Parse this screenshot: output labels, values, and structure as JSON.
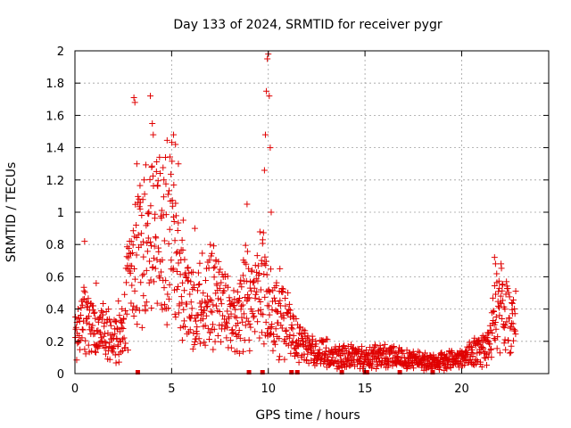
{
  "chart_data": {
    "type": "scatter",
    "title": "Day 133 of 2024, SRMTID for receiver pygr",
    "xlabel": "GPS time / hours",
    "ylabel": "SRMTID / TECUs",
    "xlim": [
      0,
      24.5
    ],
    "ylim": [
      0,
      2
    ],
    "xticks": [
      0,
      5,
      10,
      15,
      20
    ],
    "xtick_labels": [
      "0",
      "5",
      "10",
      "15",
      "20"
    ],
    "yticks": [
      0,
      0.2,
      0.4,
      0.6,
      0.8,
      1,
      1.2,
      1.4,
      1.6,
      1.8,
      2
    ],
    "ytick_labels": [
      "0",
      "0.2",
      "0.4",
      "0.6",
      "0.8",
      "1",
      "1.2",
      "1.4",
      "1.6",
      "1.8",
      "2"
    ],
    "grid": true,
    "marker": "+",
    "color": "#e00000",
    "series": [
      {
        "name": "SRMTID",
        "envelope_x": [
          0,
          0.3,
          0.5,
          1,
          1.5,
          2,
          2.5,
          2.8,
          3,
          3.3,
          3.5,
          4,
          4.5,
          5,
          5.2,
          5.5,
          6,
          6.5,
          7,
          7.5,
          8,
          8.5,
          8.8,
          9,
          9.3,
          9.5,
          9.7,
          9.8,
          10,
          10.3,
          10.5,
          11,
          11.5,
          12,
          13,
          14,
          15,
          16,
          17,
          18,
          18.5,
          19,
          20,
          20.5,
          21,
          21.5,
          21.7,
          22,
          22.5,
          22.8
        ],
        "envelope_y": [
          0.24,
          0.28,
          0.32,
          0.28,
          0.25,
          0.22,
          0.3,
          0.55,
          0.6,
          0.8,
          0.75,
          0.85,
          0.85,
          0.95,
          0.75,
          0.5,
          0.4,
          0.45,
          0.5,
          0.45,
          0.35,
          0.3,
          0.5,
          0.4,
          0.45,
          0.55,
          0.6,
          0.5,
          0.45,
          0.35,
          0.4,
          0.3,
          0.2,
          0.15,
          0.13,
          0.11,
          0.1,
          0.11,
          0.1,
          0.08,
          0.07,
          0.08,
          0.1,
          0.12,
          0.15,
          0.2,
          0.35,
          0.45,
          0.35,
          0.3
        ],
        "spikes": [
          [
            0.5,
            0.82
          ],
          [
            1.1,
            0.56
          ],
          [
            3.05,
            1.71
          ],
          [
            3.1,
            1.68
          ],
          [
            3.2,
            1.3
          ],
          [
            3.9,
            1.72
          ],
          [
            4,
            1.55
          ],
          [
            4.05,
            1.48
          ],
          [
            4.6,
            1.2
          ],
          [
            5.1,
            1.48
          ],
          [
            5.2,
            1.42
          ],
          [
            5.35,
            1.3
          ],
          [
            5.6,
            0.95
          ],
          [
            6.2,
            0.9
          ],
          [
            7,
            0.8
          ],
          [
            8.9,
            1.05
          ],
          [
            9.8,
            1.26
          ],
          [
            9.85,
            1.48
          ],
          [
            9.9,
            1.75
          ],
          [
            9.95,
            1.95
          ],
          [
            10,
            1.98
          ],
          [
            10.05,
            1.72
          ],
          [
            10.1,
            1.4
          ],
          [
            10.15,
            1.0
          ],
          [
            10.6,
            0.65
          ],
          [
            21.7,
            0.72
          ],
          [
            21.75,
            0.68
          ],
          [
            22.1,
            0.55
          ]
        ],
        "gaps_x": [
          3.25,
          9.0,
          9.7,
          11.2,
          11.5,
          13.8,
          15.0,
          15.1,
          16.8,
          18.5
        ]
      }
    ]
  }
}
